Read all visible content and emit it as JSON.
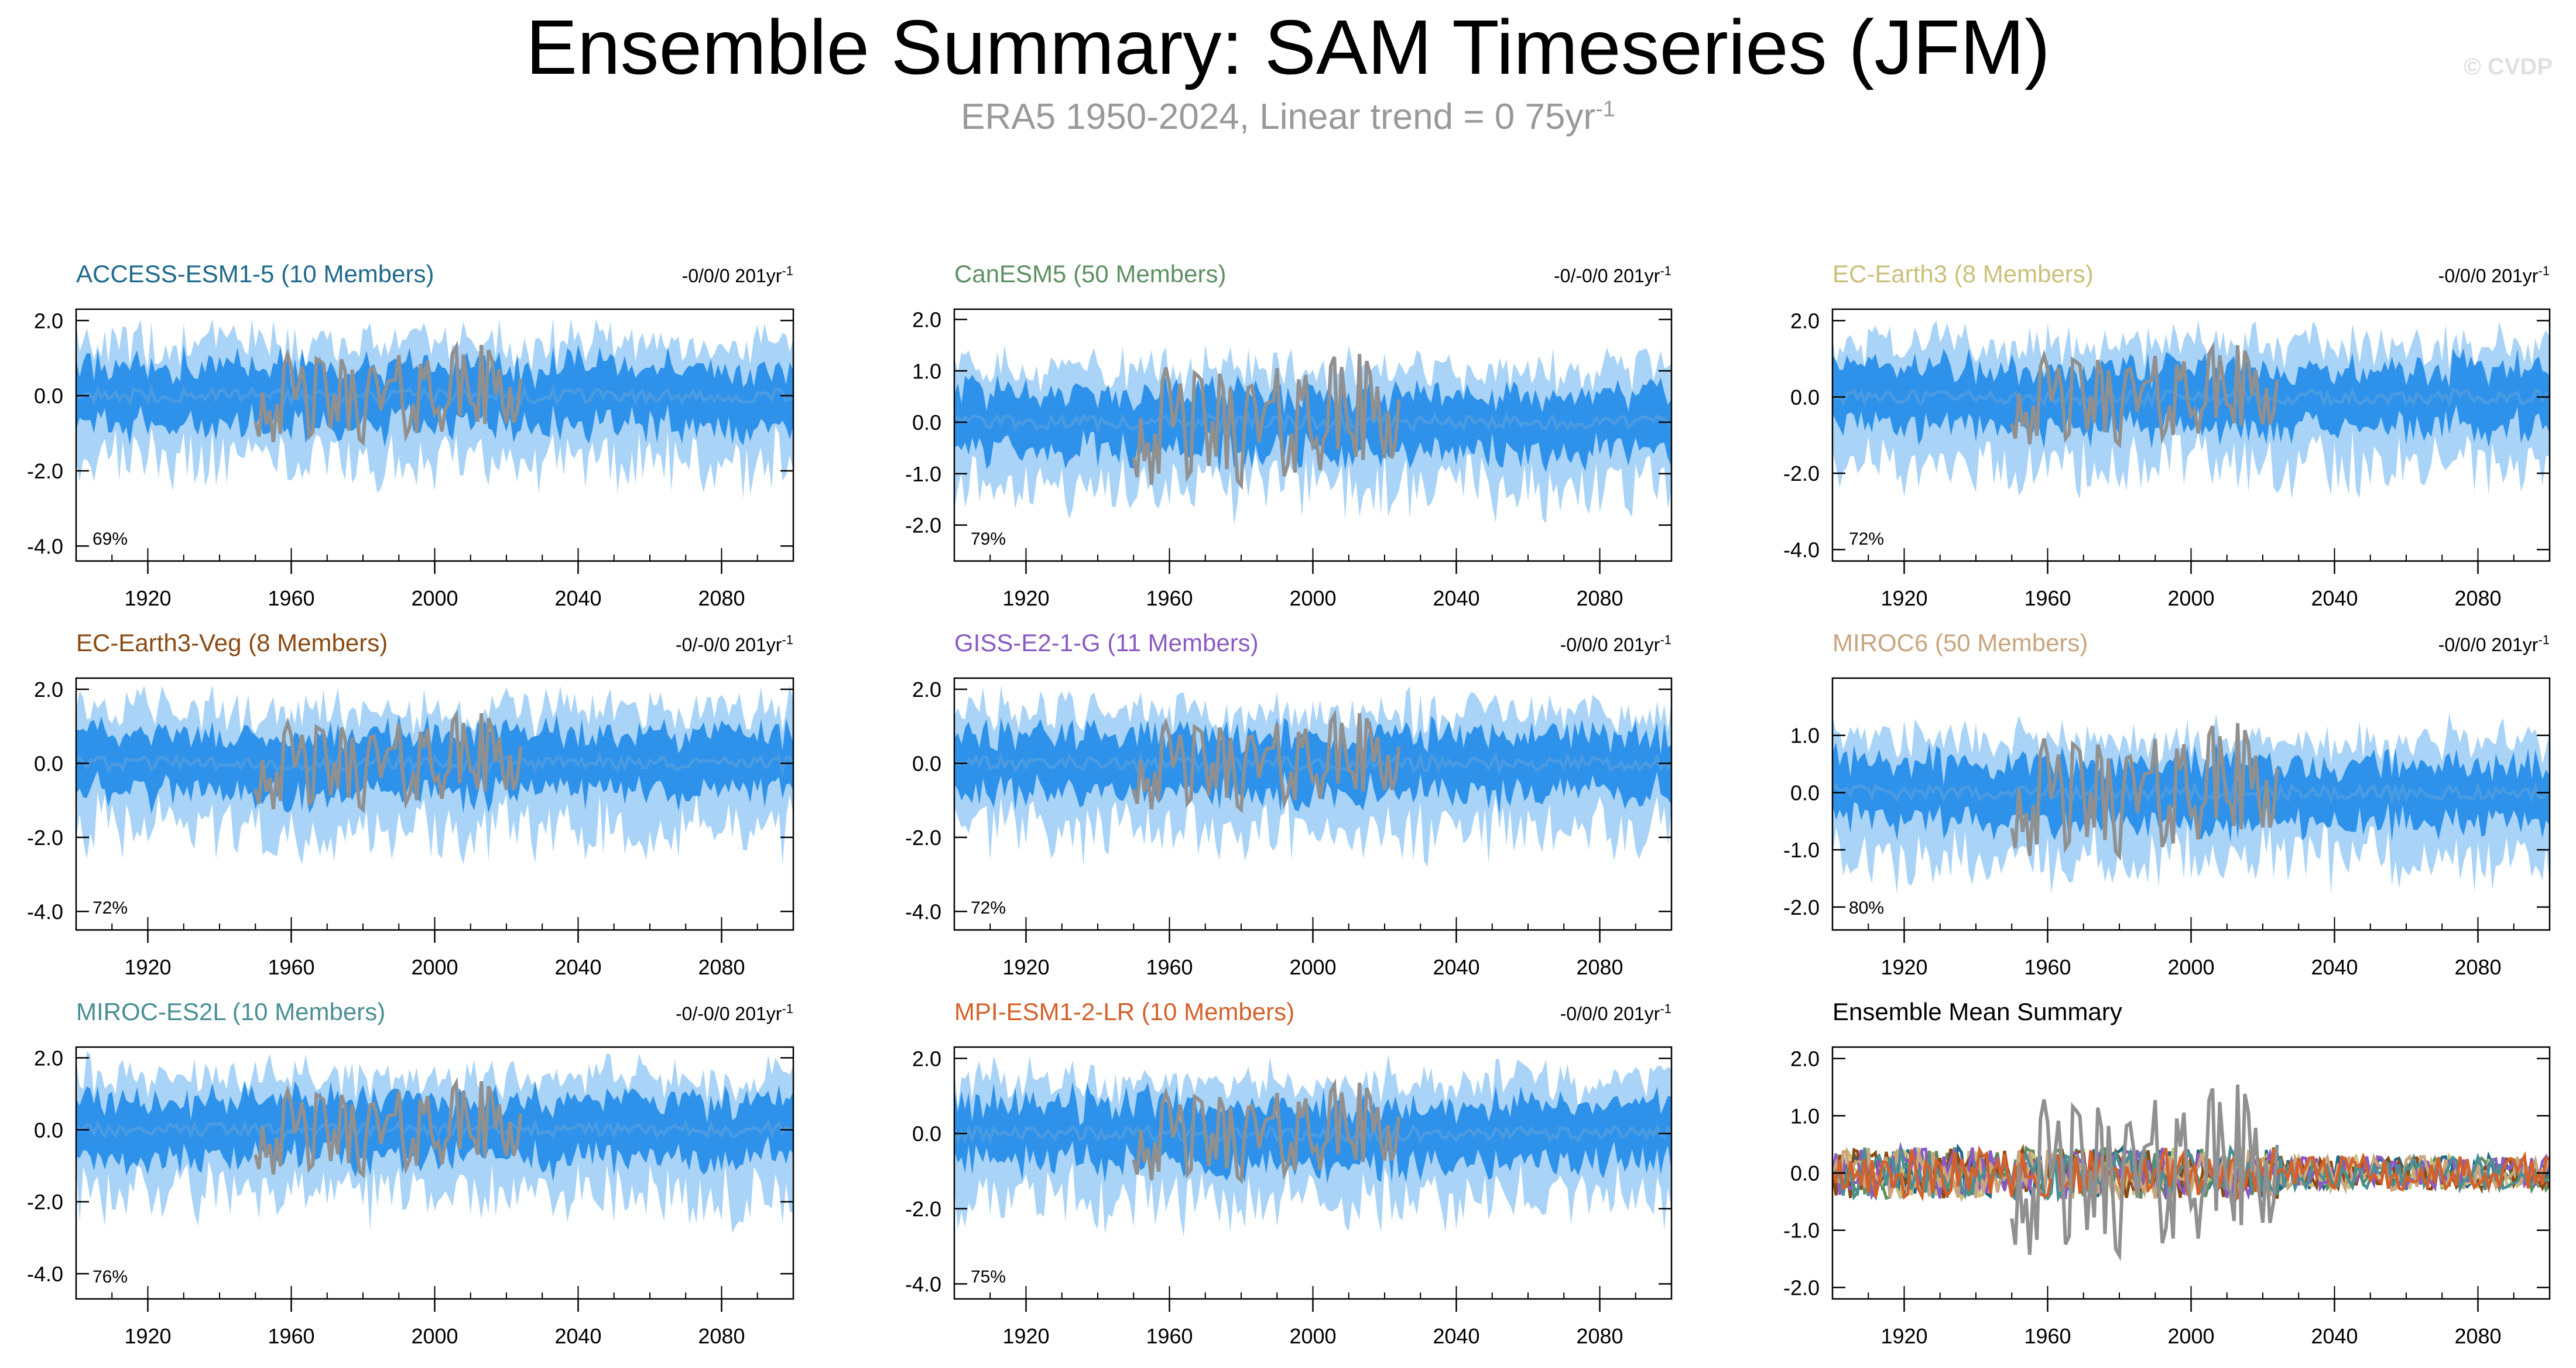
{
  "header": {
    "title": "Ensemble Summary: SAM Timeseries (JFM)",
    "subtitle_main": "ERA5 1950-2024, Linear trend = 0 75yr",
    "subtitle_sup": "-1",
    "copyright": "© CVDP"
  },
  "colors": {
    "envelope_outer": "#a9d3f7",
    "envelope_inner": "#2f92ea",
    "ensemble_mean": "#4a9be2",
    "observations": "#909090"
  },
  "chart_data": [
    {
      "type": "area",
      "title": "ACCESS-ESM1-5 (10 Members)",
      "title_color": "#1f6a8c",
      "trend": "-0/0/0 201yr",
      "trend_sup": "-1",
      "pct": "69%",
      "xlim": [
        1900,
        2100
      ],
      "ylim": [
        -4.4,
        2.3
      ],
      "yticks": [
        2.0,
        0.0,
        -2.0,
        -4.0
      ],
      "ytick_labels": [
        "2.0",
        "0.0",
        "-2.0",
        "-4.0"
      ],
      "xticks": [
        1920,
        1960,
        2000,
        2040,
        2080
      ],
      "xtick_labels": [
        "1920",
        "1960",
        "2000",
        "2040",
        "2080"
      ]
    },
    {
      "type": "area",
      "title": "CanESM5 (50 Members)",
      "title_color": "#5f8f63",
      "trend": "-0/-0/0 201yr",
      "trend_sup": "-1",
      "pct": "79%",
      "xlim": [
        1900,
        2100
      ],
      "ylim": [
        -2.7,
        2.2
      ],
      "yticks": [
        2.0,
        1.0,
        0.0,
        -1.0,
        -2.0
      ],
      "ytick_labels": [
        "2.0",
        "1.0",
        "0.0",
        "-1.0",
        "-2.0"
      ],
      "xticks": [
        1920,
        1960,
        2000,
        2040,
        2080
      ],
      "xtick_labels": [
        "1920",
        "1960",
        "2000",
        "2040",
        "2080"
      ]
    },
    {
      "type": "area",
      "title": "EC-Earth3 (8 Members)",
      "title_color": "#c9c07a",
      "trend": "-0/0/0 201yr",
      "trend_sup": "-1",
      "pct": "72%",
      "xlim": [
        1900,
        2100
      ],
      "ylim": [
        -4.3,
        2.3
      ],
      "yticks": [
        2.0,
        0.0,
        -2.0,
        -4.0
      ],
      "ytick_labels": [
        "2.0",
        "0.0",
        "-2.0",
        "-4.0"
      ],
      "xticks": [
        1920,
        1960,
        2000,
        2040,
        2080
      ],
      "xtick_labels": [
        "1920",
        "1960",
        "2000",
        "2040",
        "2080"
      ]
    },
    {
      "type": "area",
      "title": "EC-Earth3-Veg (8 Members)",
      "title_color": "#8b4a12",
      "trend": "-0/-0/0 201yr",
      "trend_sup": "-1",
      "pct": "72%",
      "xlim": [
        1900,
        2100
      ],
      "ylim": [
        -4.5,
        2.3
      ],
      "yticks": [
        2.0,
        0.0,
        -2.0,
        -4.0
      ],
      "ytick_labels": [
        "2.0",
        "0.0",
        "-2.0",
        "-4.0"
      ],
      "xticks": [
        1920,
        1960,
        2000,
        2040,
        2080
      ],
      "xtick_labels": [
        "1920",
        "1960",
        "2000",
        "2040",
        "2080"
      ]
    },
    {
      "type": "area",
      "title": "GISS-E2-1-G (11 Members)",
      "title_color": "#8a5bc2",
      "trend": "-0/0/0 201yr",
      "trend_sup": "-1",
      "pct": "72%",
      "xlim": [
        1900,
        2100
      ],
      "ylim": [
        -4.5,
        2.3
      ],
      "yticks": [
        2.0,
        0.0,
        -2.0,
        -4.0
      ],
      "ytick_labels": [
        "2.0",
        "0.0",
        "-2.0",
        "-4.0"
      ],
      "xticks": [
        1920,
        1960,
        2000,
        2040,
        2080
      ],
      "xtick_labels": [
        "1920",
        "1960",
        "2000",
        "2040",
        "2080"
      ]
    },
    {
      "type": "area",
      "title": "MIROC6 (50 Members)",
      "title_color": "#c9a57e",
      "trend": "-0/0/0 201yr",
      "trend_sup": "-1",
      "pct": "80%",
      "xlim": [
        1900,
        2100
      ],
      "ylim": [
        -2.4,
        2.0
      ],
      "yticks": [
        1.0,
        0.0,
        -1.0,
        -2.0
      ],
      "ytick_labels": [
        "1.0",
        "0.0",
        "-1.0",
        "-2.0"
      ],
      "xticks": [
        1920,
        1960,
        2000,
        2040,
        2080
      ],
      "xtick_labels": [
        "1920",
        "1960",
        "2000",
        "2040",
        "2080"
      ]
    },
    {
      "type": "area",
      "title": "MIROC-ES2L (10 Members)",
      "title_color": "#4a8f94",
      "trend": "-0/-0/0 201yr",
      "trend_sup": "-1",
      "pct": "76%",
      "xlim": [
        1900,
        2100
      ],
      "ylim": [
        -4.7,
        2.3
      ],
      "yticks": [
        2.0,
        0.0,
        -2.0,
        -4.0
      ],
      "ytick_labels": [
        "2.0",
        "0.0",
        "-2.0",
        "-4.0"
      ],
      "xticks": [
        1920,
        1960,
        2000,
        2040,
        2080
      ],
      "xtick_labels": [
        "1920",
        "1960",
        "2000",
        "2040",
        "2080"
      ]
    },
    {
      "type": "area",
      "title": "MPI-ESM1-2-LR (10 Members)",
      "title_color": "#d4612b",
      "trend": "-0/0/0 201yr",
      "trend_sup": "-1",
      "pct": "75%",
      "xlim": [
        1900,
        2100
      ],
      "ylim": [
        -4.4,
        2.3
      ],
      "yticks": [
        2.0,
        0.0,
        -2.0,
        -4.0
      ],
      "ytick_labels": [
        "2.0",
        "0.0",
        "-2.0",
        "-4.0"
      ],
      "xticks": [
        1920,
        1960,
        2000,
        2040,
        2080
      ],
      "xtick_labels": [
        "1920",
        "1960",
        "2000",
        "2040",
        "2080"
      ]
    },
    {
      "type": "line",
      "title": "Ensemble Mean Summary",
      "title_color": "#000000",
      "trend": "",
      "trend_sup": "",
      "pct": "",
      "xlim": [
        1900,
        2100
      ],
      "ylim": [
        -2.2,
        2.2
      ],
      "yticks": [
        2.0,
        1.0,
        0.0,
        -1.0,
        -2.0
      ],
      "ytick_labels": [
        "2.0",
        "1.0",
        "0.0",
        "-1.0",
        "-2.0"
      ],
      "xticks": [
        1920,
        1960,
        2000,
        2040,
        2080
      ],
      "xtick_labels": [
        "1920",
        "1960",
        "2000",
        "2040",
        "2080"
      ],
      "series_colors": [
        "#1f6a8c",
        "#5f8f63",
        "#c9c07a",
        "#8b4a12",
        "#8a5bc2",
        "#c9a57e",
        "#4a8f94",
        "#d4612b"
      ]
    }
  ]
}
